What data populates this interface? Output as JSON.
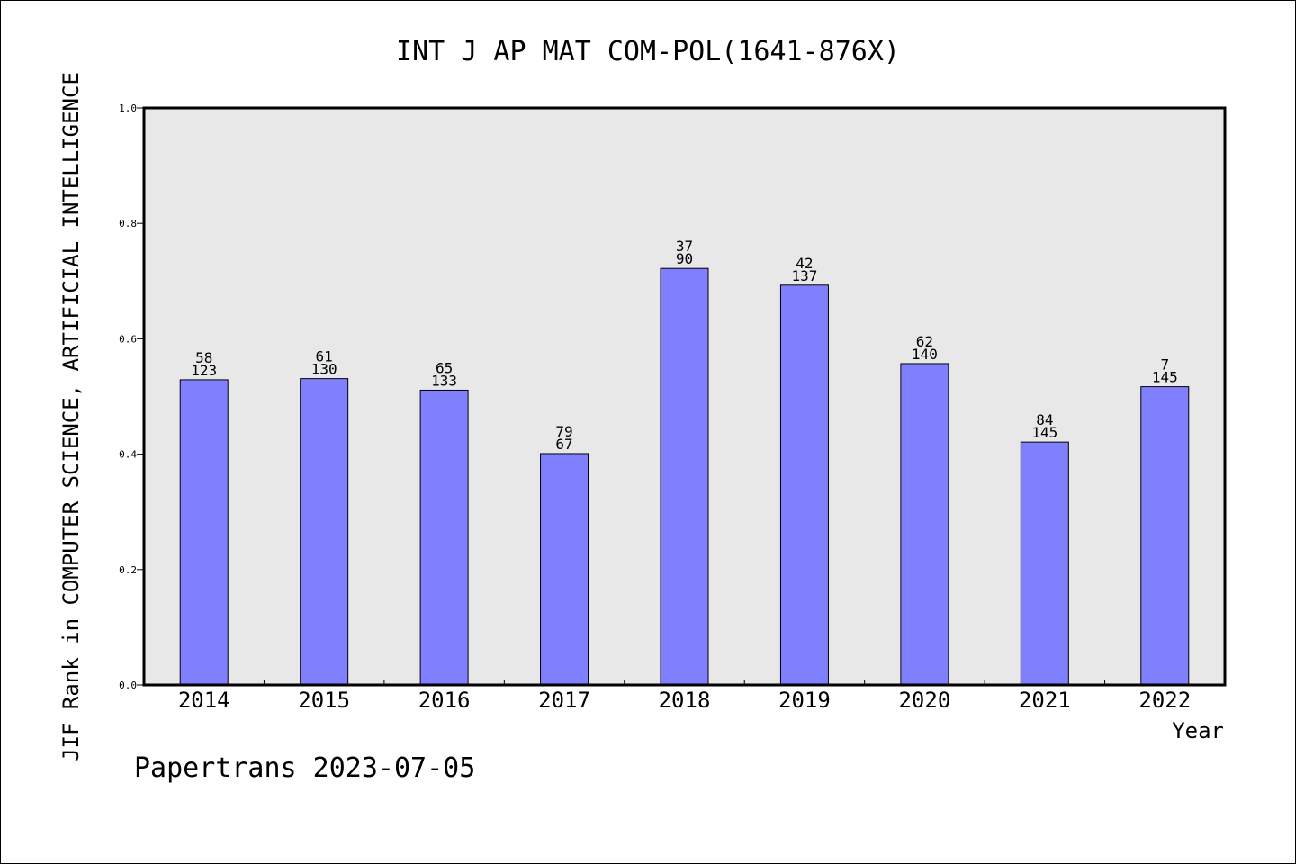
{
  "chart_data": {
    "type": "bar",
    "title": "INT J AP MAT COM-POL(1641-876X)",
    "xlabel": "Year",
    "ylabel": "JIF Rank in COMPUTER SCIENCE, ARTIFICIAL INTELLIGENCE",
    "ylim": [
      0,
      1.0
    ],
    "yticks": [
      "0.0",
      "0.2",
      "0.4",
      "0.6",
      "0.8",
      "1.0"
    ],
    "grid": false,
    "bar_color": "#8080ff",
    "plot_background": "#e8e8e8",
    "categories": [
      "2014",
      "2015",
      "2016",
      "2017",
      "2018",
      "2019",
      "2020",
      "2021",
      "2022"
    ],
    "values": [
      0.529,
      0.531,
      0.511,
      0.401,
      0.722,
      0.693,
      0.557,
      0.421,
      0.517
    ],
    "rank": [
      "58",
      "61",
      "65",
      "79",
      "37",
      "42",
      "62",
      "84",
      "7"
    ],
    "total": [
      "123",
      "130",
      "133",
      "67",
      "90",
      "137",
      "140",
      "145",
      "145"
    ]
  },
  "footer": {
    "source": "Papertrans 2023-07-05"
  }
}
